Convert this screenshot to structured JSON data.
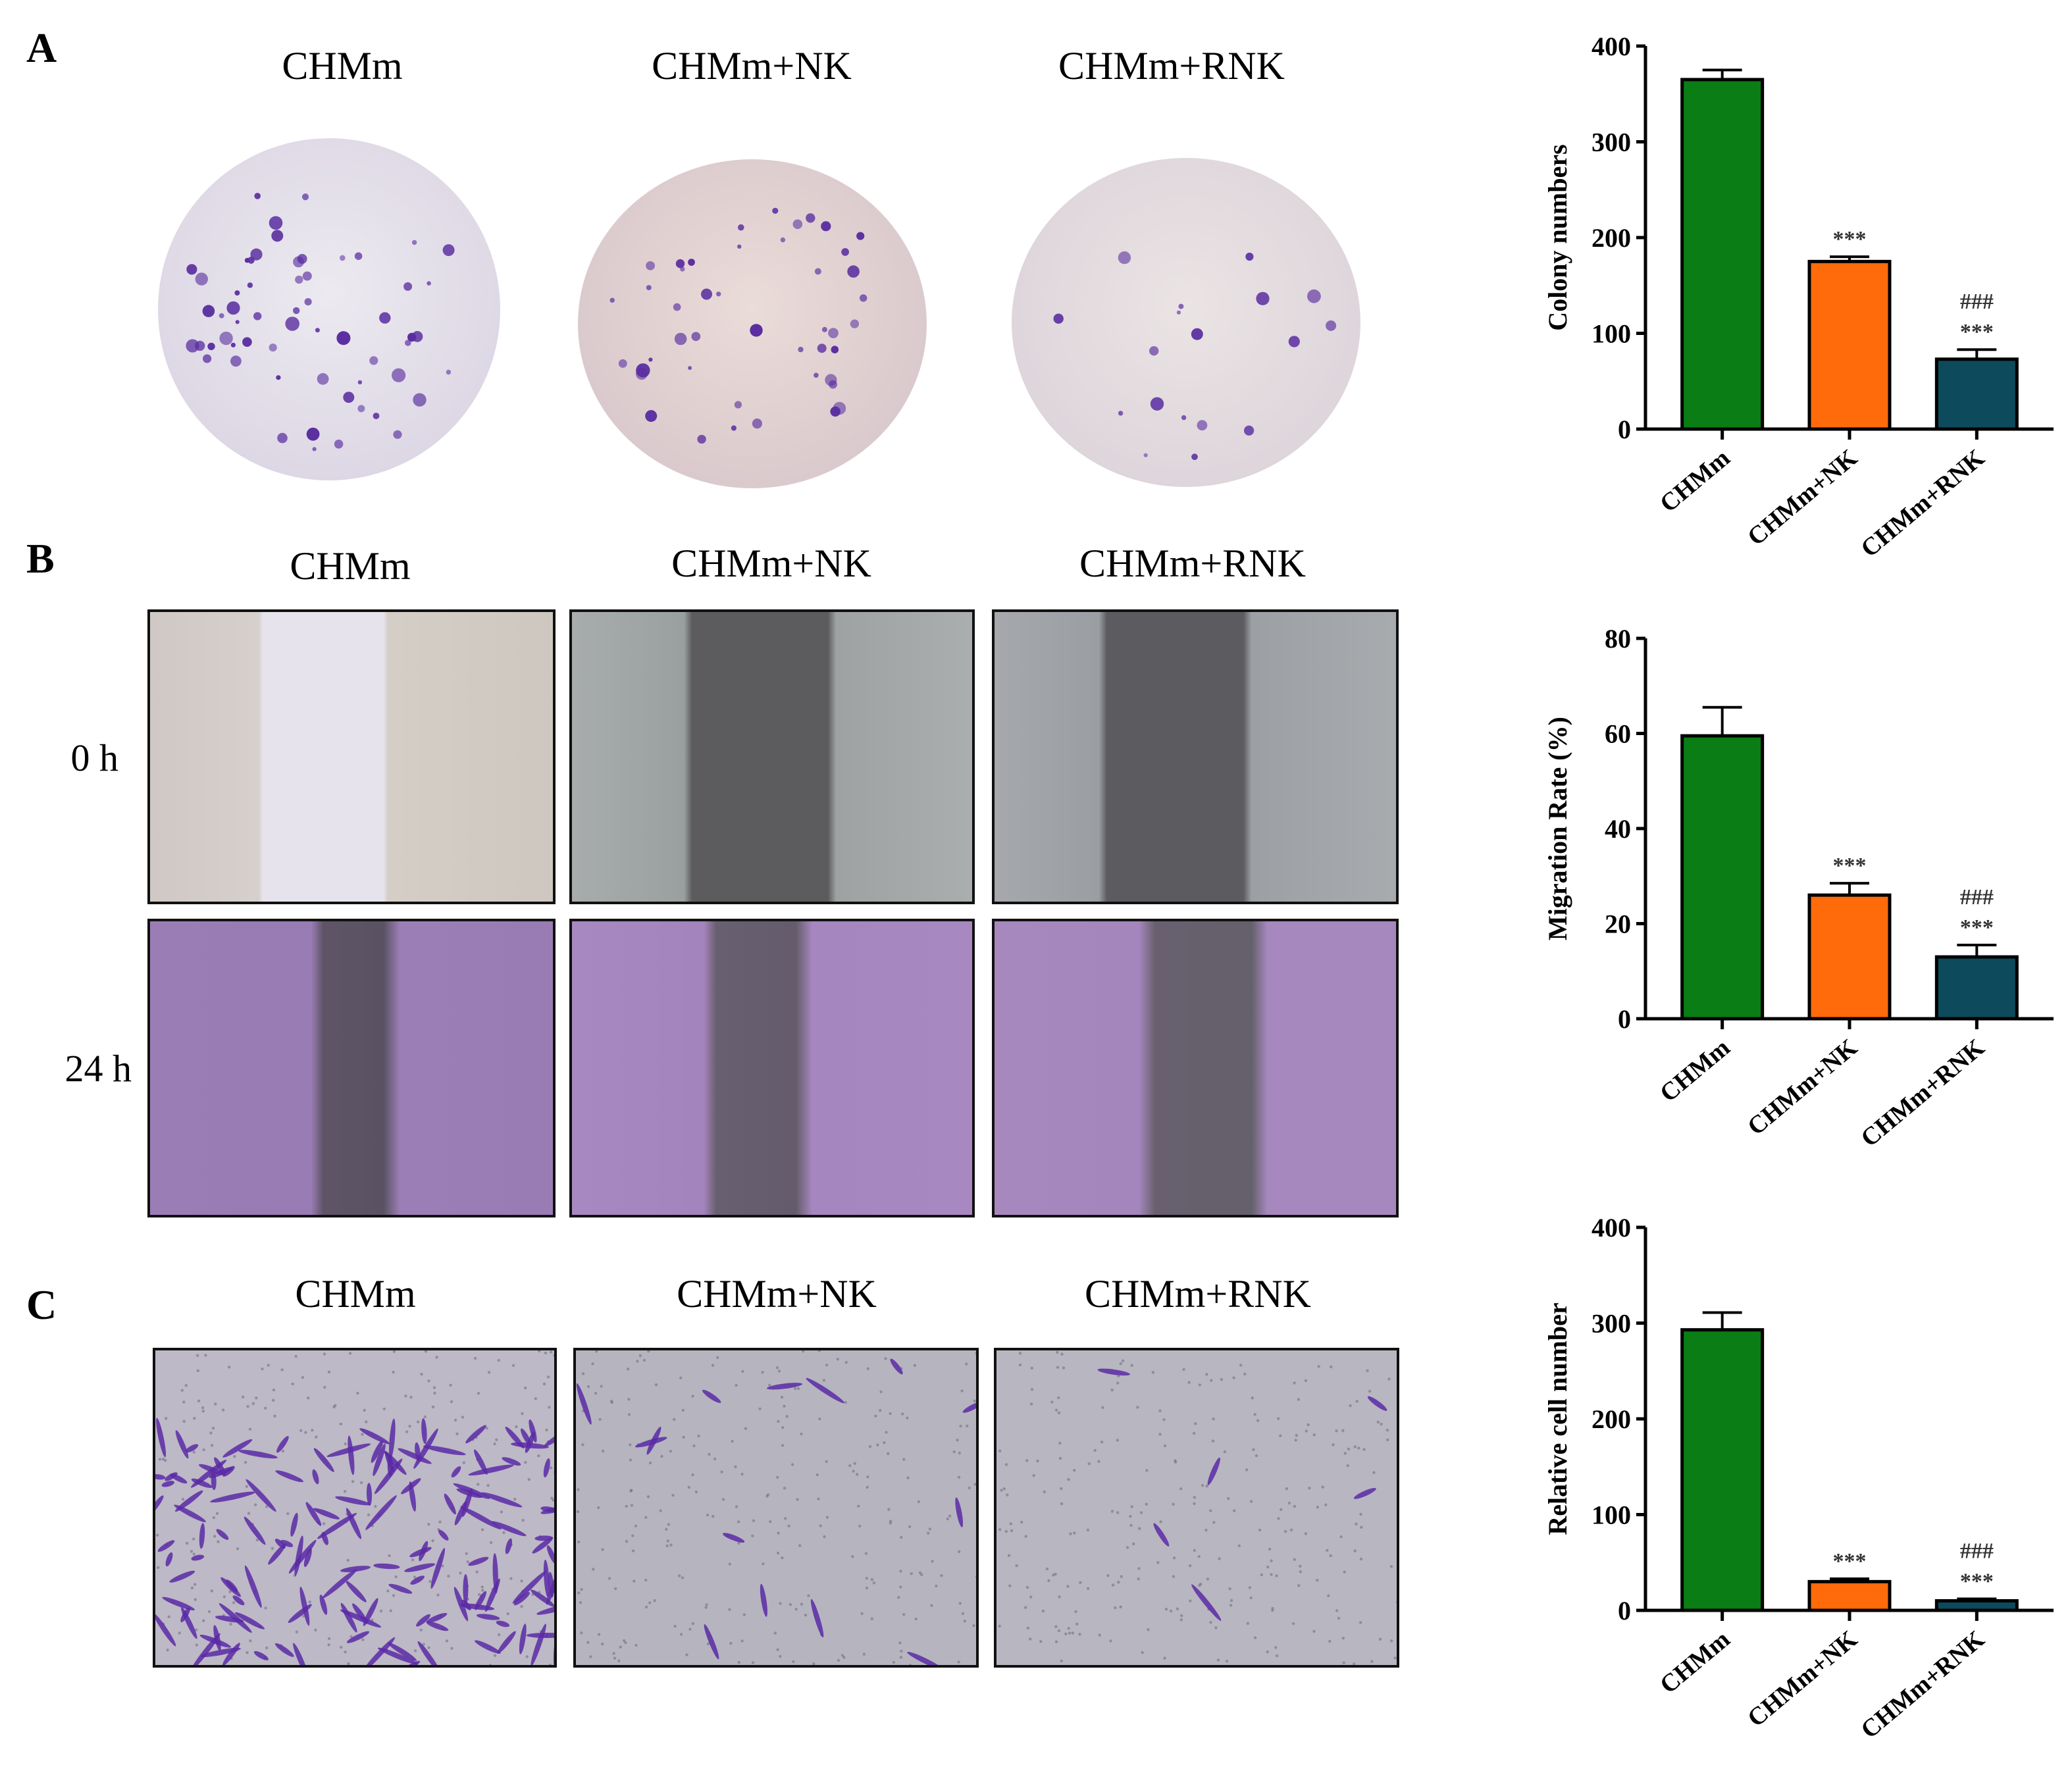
{
  "panels": {
    "a": "A",
    "b": "B",
    "c": "C"
  },
  "groups": [
    "CHMm",
    "CHMm+NK",
    "CHMm+RNK"
  ],
  "row_labels": {
    "t0": "0 h",
    "t24": "24 h"
  },
  "colors": {
    "CHMm": "#0a7d14",
    "CHMm+NK": "#ff6a0a",
    "CHMm+RNK": "#0d4a5c",
    "dish_bg": "#e6e0ea",
    "colony": "#5a2ea0",
    "wound_0h_first": "#e4e1ea",
    "wound_gray": "#5a5a5e",
    "cells_purple": "#9c7ab4",
    "transwell_bg": "#b9b4c6"
  },
  "chart_data": [
    {
      "type": "bar",
      "categories": [
        "CHMm",
        "CHMm+NK",
        "CHMm+RNK"
      ],
      "values": [
        365,
        175,
        73
      ],
      "errors": [
        10,
        5,
        10
      ],
      "annotations": [
        [],
        [
          "***"
        ],
        [
          "###",
          "***"
        ]
      ],
      "title": "",
      "xlabel": "",
      "ylabel": "Colony numbers",
      "ylim": [
        0,
        400
      ],
      "yticks": [
        0,
        100,
        200,
        300,
        400
      ]
    },
    {
      "type": "bar",
      "categories": [
        "CHMm",
        "CHMm+NK",
        "CHMm+RNK"
      ],
      "values": [
        59.5,
        26,
        13
      ],
      "errors": [
        6,
        2.5,
        2.5
      ],
      "annotations": [
        [],
        [
          "***"
        ],
        [
          "###",
          "***"
        ]
      ],
      "title": "",
      "xlabel": "",
      "ylabel": "Migration Rate (%)",
      "ylim": [
        0,
        80
      ],
      "yticks": [
        0,
        20,
        40,
        60,
        80
      ]
    },
    {
      "type": "bar",
      "categories": [
        "CHMm",
        "CHMm+NK",
        "CHMm+RNK"
      ],
      "values": [
        293,
        30,
        10
      ],
      "errors": [
        18,
        3,
        2
      ],
      "annotations": [
        [],
        [
          "***"
        ],
        [
          "###",
          "***"
        ]
      ],
      "title": "",
      "xlabel": "",
      "ylabel": "Relative cell number",
      "ylim": [
        0,
        400
      ],
      "yticks": [
        0,
        100,
        200,
        300,
        400
      ]
    }
  ]
}
